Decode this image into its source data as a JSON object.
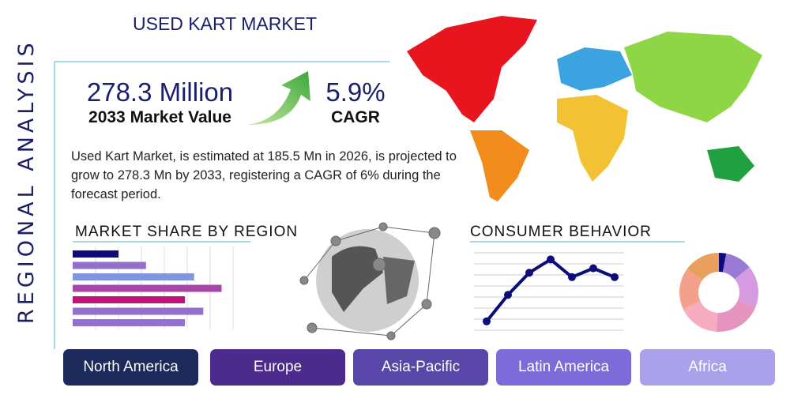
{
  "title": "USED KART MARKET",
  "side_label": "REGIONAL ANALYSIS",
  "market_value": {
    "value": "278.3 Million",
    "label": "2033 Market Value"
  },
  "cagr": {
    "value": "5.9%",
    "label": "CAGR"
  },
  "description": "Used Kart Market, is estimated at 185.5 Mn in 2026, is projected to grow to 278.3 Mn by 2033, registering a CAGR of 6% during the forecast period.",
  "sections": {
    "share": "MARKET SHARE BY REGION",
    "behavior": "CONSUMER BEHAVIOR"
  },
  "regions": [
    {
      "label": "North America",
      "color": "#1c2a5c"
    },
    {
      "label": "Europe",
      "color": "#4b2b8c"
    },
    {
      "label": "Asia-Pacific",
      "color": "#5847a8"
    },
    {
      "label": "Latin America",
      "color": "#7c6bd9"
    },
    {
      "label": "Africa",
      "color": "#a9a2ea"
    }
  ],
  "chart_data": [
    {
      "type": "bar",
      "orientation": "horizontal",
      "values": [
        2.0,
        3.2,
        5.3,
        6.5,
        4.9,
        5.7,
        4.9
      ],
      "colors": [
        "#0c0c7a",
        "#9370cc",
        "#7f95dc",
        "#a846a8",
        "#c0127a",
        "#9370cc",
        "#9370cc"
      ],
      "grid": true,
      "xlim": [
        0,
        7
      ]
    },
    {
      "type": "line",
      "values": [
        0.8,
        3.2,
        5.2,
        6.4,
        4.8,
        5.6,
        4.8
      ],
      "color": "#0c0c7a",
      "grid": true,
      "ylim": [
        0,
        7
      ]
    },
    {
      "type": "pie",
      "donut": true,
      "values": [
        3,
        11,
        17,
        20,
        17,
        17,
        15
      ],
      "colors": [
        "#0c0c7a",
        "#9b79d6",
        "#d59ae0",
        "#e793bf",
        "#f7adc0",
        "#f4a08a",
        "#e9a05e"
      ]
    }
  ]
}
